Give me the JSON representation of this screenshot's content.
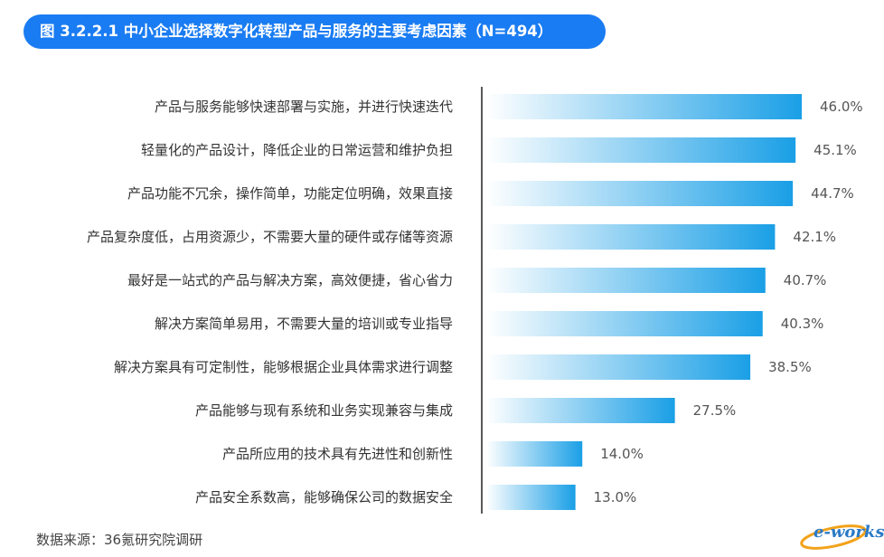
{
  "title": "图 3.2.2.1 中小企业选择数字化转型产品与服务的主要考虑因素（N=494）",
  "source": "数据来源：36氪研究院调研",
  "logo_text": "e-works",
  "colors": {
    "title_bg": "#1a7cf2",
    "bar_start": "#ffffff",
    "bar_end": "#1a9fe6",
    "axis": "#222222"
  },
  "chart_data": {
    "type": "bar",
    "orientation": "horizontal",
    "categories": [
      "产品与服务能够快速部署与实施，并进行快速迭代",
      "轻量化的产品设计，降低企业的日常运营和维护负担",
      "产品功能不冗余，操作简单，功能定位明确，效果直接",
      "产品复杂度低，占用资源少，不需要大量的硬件或存储等资源",
      "最好是一站式的产品与解决方案，高效便捷，省心省力",
      "解决方案简单易用，不需要大量的培训或专业指导",
      "解决方案具有可定制性，能够根据企业具体需求进行调整",
      "产品能够与现有系统和业务实现兼容与集成",
      "产品所应用的技术具有先进性和创新性",
      "产品安全系数高，能够确保公司的数据安全"
    ],
    "values": [
      46.0,
      45.1,
      44.7,
      42.1,
      40.7,
      40.3,
      38.5,
      27.5,
      14.0,
      13.0
    ],
    "value_labels": [
      "46.0%",
      "45.1%",
      "44.7%",
      "42.1%",
      "40.7%",
      "40.3%",
      "38.5%",
      "27.5%",
      "14.0%",
      "13.0%"
    ],
    "unit": "%",
    "xlim": [
      0,
      50
    ],
    "grid": false,
    "legend": "none"
  }
}
